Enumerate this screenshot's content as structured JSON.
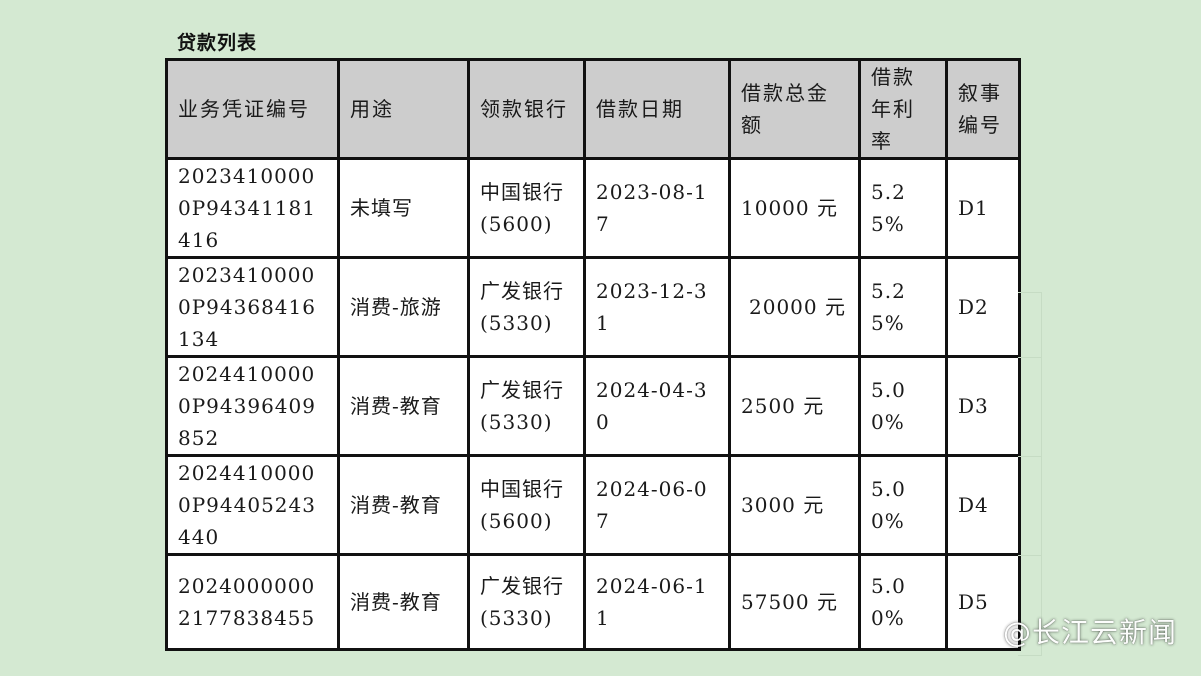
{
  "title": "贷款列表",
  "columns": [
    "业务凭证编号",
    "用途",
    "领款银行",
    "借款日期",
    "借款总金额",
    "借款年利率",
    "叙事编号"
  ],
  "rows": [
    {
      "voucher": "20234100000P94341181416",
      "purpose": "未填写",
      "bank": "中国银行(5600)",
      "date": "2023-08-17",
      "amount": "10000 元",
      "rate": "5.25%",
      "narrative": "D1"
    },
    {
      "voucher": "20234100000P94368416134",
      "purpose": "消费-旅游",
      "bank": "广发银行(5330)",
      "date": "2023-12-31",
      "amount": "20000 元",
      "rate": "5.25%",
      "narrative": "D2"
    },
    {
      "voucher": "20244100000P94396409852",
      "purpose": "消费-教育",
      "bank": "广发银行(5330)",
      "date": "2024-04-30",
      "amount": "2500 元",
      "rate": "5.00%",
      "narrative": "D3"
    },
    {
      "voucher": "20244100000P94405243440",
      "purpose": "消费-教育",
      "bank": "中国银行(5600)",
      "date": "2024-06-07",
      "amount": "3000 元",
      "rate": "5.00%",
      "narrative": "D4"
    },
    {
      "voucher": "20240000002177838455",
      "purpose": "消费-教育",
      "bank": "广发银行(5330)",
      "date": "2024-06-11",
      "amount": "57500 元",
      "rate": "5.00%",
      "narrative": "D5"
    }
  ],
  "watermark": {
    "text": "@长江云新闻",
    "icon": "weibo-icon"
  }
}
